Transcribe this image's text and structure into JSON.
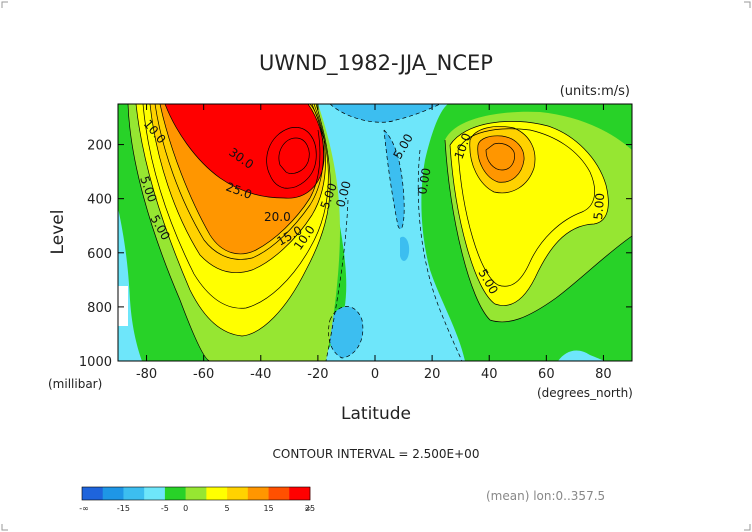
{
  "chart_data": {
    "type": "heatmap",
    "title": "UWND_1982-JJA_NCEP",
    "units": "(units:m/s)",
    "xlabel": "Latitude",
    "x_units": "(degrees_north)",
    "ylabel": "Level",
    "y_units": "(millibar)",
    "xlim": [
      -90,
      90
    ],
    "ylim": [
      1000,
      50
    ],
    "x_ticks": [
      "-80",
      "-60",
      "-40",
      "-20",
      "0",
      "20",
      "40",
      "60",
      "80"
    ],
    "y_ticks": [
      "200",
      "400",
      "600",
      "800",
      "1000"
    ],
    "contour_interval_text": "CONTOUR INTERVAL = 2.500E+00",
    "footer_text": "(mean) lon:0..357.5",
    "contour_labels": [
      "10.0",
      "30.0",
      "25.0",
      "20.0",
      "15.0",
      "10.0",
      "5.00",
      "5.00",
      "0.00",
      "5.00",
      "10.0",
      "0.00",
      "5.00",
      "5.00",
      "5.00"
    ],
    "jets": [
      {
        "lat": -30,
        "level": 200,
        "max": 32.5
      },
      {
        "lat": 42,
        "level": 200,
        "max": 17.5
      },
      {
        "lat": 0,
        "level": 150,
        "min": -12
      }
    ],
    "colorbar": {
      "levels": [
        -20,
        -15,
        -10,
        -5,
        0,
        5,
        10,
        15,
        20,
        25,
        30
      ],
      "labels": [
        "-∞",
        "-15",
        "-5",
        "0",
        "5",
        "15",
        "25",
        "∞"
      ],
      "colors": [
        "#1e64dc",
        "#1e96e6",
        "#3cbef0",
        "#6ee6fa",
        "#28d228",
        "#96e632",
        "#ffff00",
        "#ffd200",
        "#ff9600",
        "#ff5000",
        "#ff0000"
      ]
    }
  }
}
